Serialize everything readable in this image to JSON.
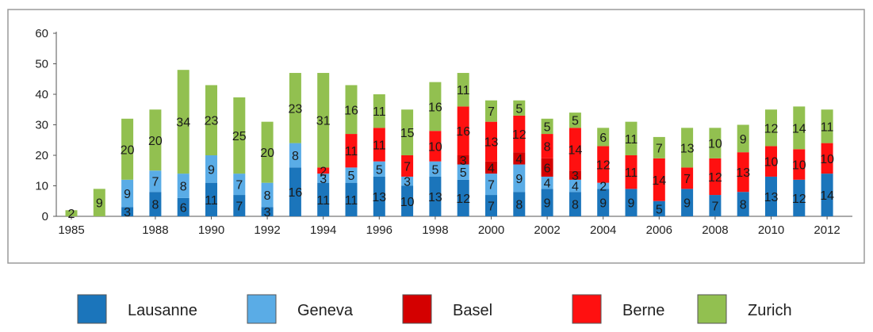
{
  "chart_data": {
    "type": "bar",
    "stacked": true,
    "years": [
      1985,
      1986,
      1987,
      1988,
      1989,
      1990,
      1991,
      1992,
      1993,
      1994,
      1995,
      1996,
      1997,
      1998,
      1999,
      2000,
      2001,
      2002,
      2003,
      2004,
      2005,
      2006,
      2007,
      2008,
      2009,
      2010,
      2011,
      2012
    ],
    "x_tick_labels": [
      "1985",
      "1988",
      "1990",
      "1992",
      "1994",
      "1996",
      "1998",
      "2000",
      "2002",
      "2004",
      "2006",
      "2008",
      "2010",
      "2012"
    ],
    "ylim": [
      0,
      60
    ],
    "y_ticks": [
      0,
      10,
      20,
      30,
      40,
      50,
      60
    ],
    "grid": false,
    "legend_position": "bottom",
    "series": [
      {
        "name": "Lausanne",
        "color": "#1b75bb",
        "values": [
          0,
          0,
          3,
          8,
          6,
          11,
          7,
          3,
          16,
          11,
          11,
          13,
          10,
          13,
          12,
          7,
          8,
          9,
          8,
          9,
          9,
          5,
          9,
          7,
          8,
          13,
          12,
          14
        ]
      },
      {
        "name": "Geneva",
        "color": "#5aace6",
        "values": [
          0,
          0,
          9,
          7,
          8,
          9,
          7,
          8,
          8,
          3,
          5,
          5,
          3,
          5,
          5,
          7,
          9,
          4,
          4,
          2,
          0,
          0,
          0,
          0,
          0,
          0,
          0,
          0
        ]
      },
      {
        "name": "Basel",
        "color": "#d40000",
        "values": [
          0,
          0,
          0,
          0,
          0,
          0,
          0,
          0,
          0,
          0,
          0,
          0,
          0,
          0,
          3,
          4,
          4,
          6,
          3,
          0,
          0,
          0,
          0,
          0,
          0,
          0,
          0,
          0
        ]
      },
      {
        "name": "Berne",
        "color": "#ff1010",
        "values": [
          0,
          0,
          0,
          0,
          0,
          0,
          0,
          0,
          0,
          2,
          11,
          11,
          7,
          10,
          16,
          13,
          12,
          8,
          14,
          12,
          11,
          14,
          7,
          12,
          13,
          10,
          10,
          10
        ]
      },
      {
        "name": "Zurich",
        "color": "#92c050",
        "values": [
          2,
          9,
          20,
          20,
          34,
          23,
          25,
          20,
          23,
          31,
          16,
          11,
          15,
          16,
          11,
          7,
          5,
          5,
          5,
          6,
          11,
          7,
          13,
          10,
          9,
          12,
          14,
          11
        ]
      }
    ]
  }
}
